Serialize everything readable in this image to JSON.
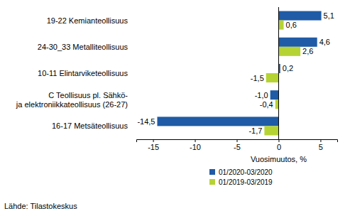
{
  "chart_data": {
    "type": "bar",
    "orientation": "horizontal",
    "categories": [
      "19-22 Kemianteollisuus",
      "24-30_33 Metalliteollisuus",
      "10-11 Elintarviketeollisuus",
      "C Teollisuus pl. Sähkö-\nja elektroniikkateollisuus (26-27)",
      "16-17 Metsäteollisuus"
    ],
    "series": [
      {
        "name": "01/2020-03/2020",
        "color": "#1f5ba6",
        "values": [
          5.1,
          4.6,
          0.2,
          -1.0,
          -14.5
        ],
        "value_labels": [
          "5,1",
          "4,6",
          "0,2",
          "-1,0",
          "-14,5"
        ]
      },
      {
        "name": "01/2019-03/2019",
        "color": "#b6d334",
        "values": [
          0.6,
          2.6,
          -1.5,
          -0.4,
          -1.7
        ],
        "value_labels": [
          "0,6",
          "2,6",
          "-1,5",
          "-0,4",
          "-1,7"
        ]
      }
    ],
    "xlim": [
      -17,
      7
    ],
    "xticks": [
      -15,
      -10,
      -5,
      0,
      5
    ],
    "x_label": "Vuosimuutos, %",
    "source": "Lähde: Tilastokeskus",
    "data_labels": true,
    "grid": false,
    "legend": "bottom"
  }
}
